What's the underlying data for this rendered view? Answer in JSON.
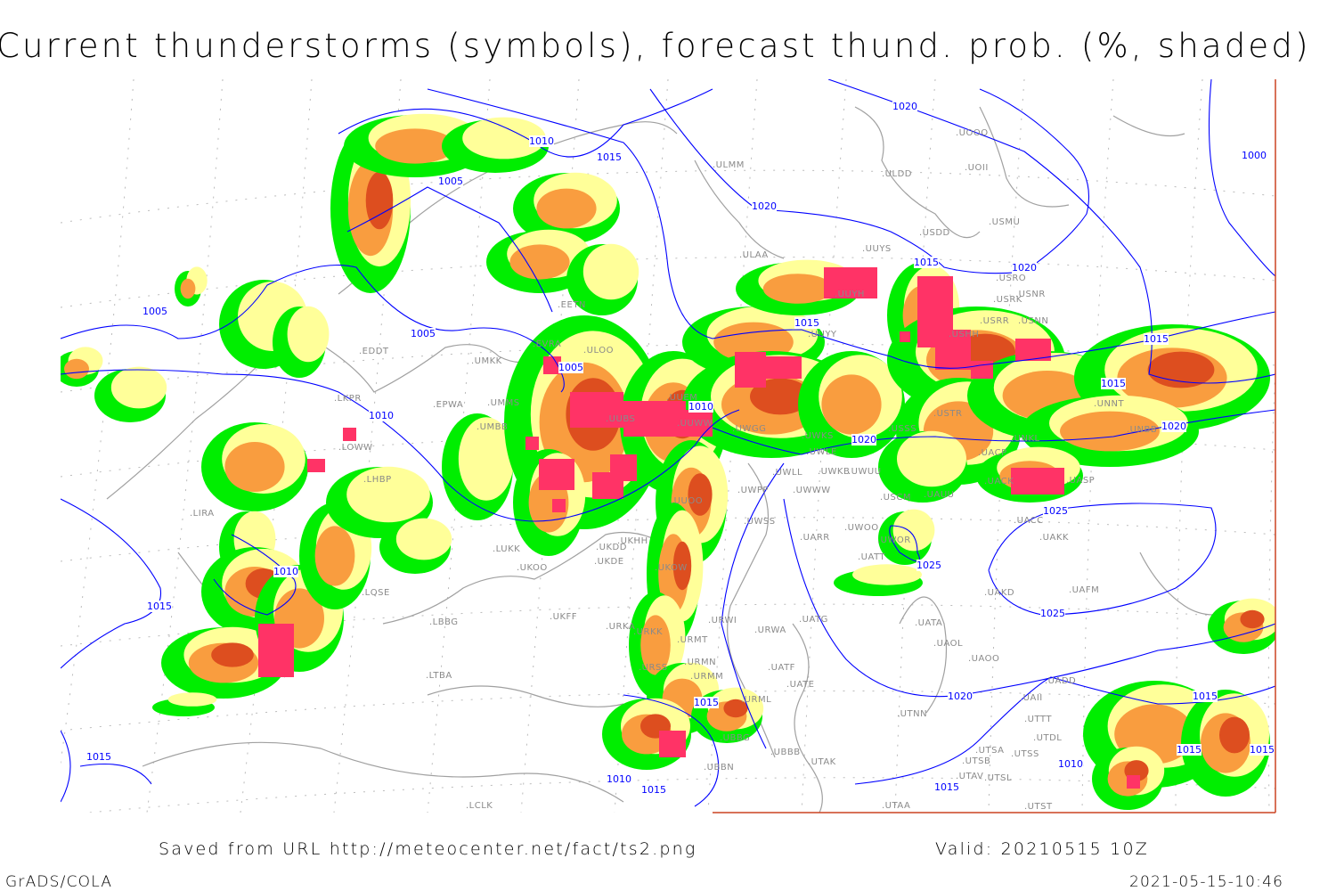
{
  "title": "Current thunderstorms (symbols), forecast thund. prob. (%, shaded)",
  "footer": {
    "source": "Saved from URL http://meteocenter.net/fact/ts2.png",
    "valid": "Valid: 20210515 10Z",
    "software": "GrADS/COLA",
    "timestamp": "2021-05-15-10:46"
  },
  "colors": {
    "prob_low": "#00ee00",
    "prob_mid": "#ffff99",
    "prob_high": "#f99d3f",
    "prob_very_high": "#dd4e1f",
    "thunderstorm_symbol": "#ff3366",
    "isobar": "#0000ff",
    "coastline": "#a0a0a0",
    "frame": "#cc4422"
  },
  "stations": [
    "EDDT",
    "EPWA",
    "LKPR",
    "LOWW",
    "LHBP",
    "LIRA",
    "LQSE",
    "LBBG",
    "LTBA",
    "LCLK",
    "LUKK",
    "UKOO",
    "UKFF",
    "UKDD",
    "UKHH",
    "UKDE",
    "UKOW",
    "URKA",
    "URKK",
    "URSS",
    "UMKK",
    "UMMS",
    "UMBB",
    "EETN",
    "EVRA",
    "ULOO",
    "UUEM",
    "UUBS",
    "UUOO",
    "UUWW",
    "UWGG",
    "UWKS",
    "UWLE",
    "UWKB",
    "UWUU",
    "UWLL",
    "UWPP",
    "UWWW",
    "USCM",
    "UACK",
    "UASP",
    "UACP",
    "UAUU",
    "UWSS",
    "UARR",
    "UWOO",
    "UWOR",
    "UATT",
    "UACC",
    "UAKK",
    "UAKD",
    "UAFM",
    "URWI",
    "UATG",
    "UATA",
    "URWA",
    "UAOL",
    "UAOO",
    "UATE",
    "UATF",
    "UADD",
    "URML",
    "UTNN",
    "UAII",
    "UTTT",
    "UTDL",
    "UBBB",
    "UTAK",
    "UTSA",
    "UTSS",
    "UTSB",
    "UTAV",
    "UTSL",
    "UTAA",
    "UTST",
    "UBBG",
    "UBBN",
    "URMT",
    "URMN",
    "URMM",
    "ULMM",
    "ULDD",
    "USDD",
    "USMU",
    "UUYS",
    "ULAA",
    "UUYH",
    "USRO",
    "USRK",
    "USNR",
    "USRR",
    "USNN",
    "USHH",
    "UUYY",
    "UOOO",
    "UOII",
    "UNBB",
    "UNNT",
    "USSS",
    "USTR",
    "UNKL"
  ],
  "isobar_labels": [
    "1005",
    "1010",
    "1015",
    "1020",
    "1020",
    "1015",
    "1020",
    "1000",
    "1005",
    "1005",
    "1005",
    "1015",
    "1010",
    "1015",
    "1015",
    "1020",
    "1020",
    "1010",
    "1025",
    "1025",
    "1025",
    "1010",
    "1015",
    "1020",
    "1015",
    "1015",
    "1010",
    "1015",
    "1015",
    "1015",
    "1010",
    "1015",
    "1015"
  ]
}
